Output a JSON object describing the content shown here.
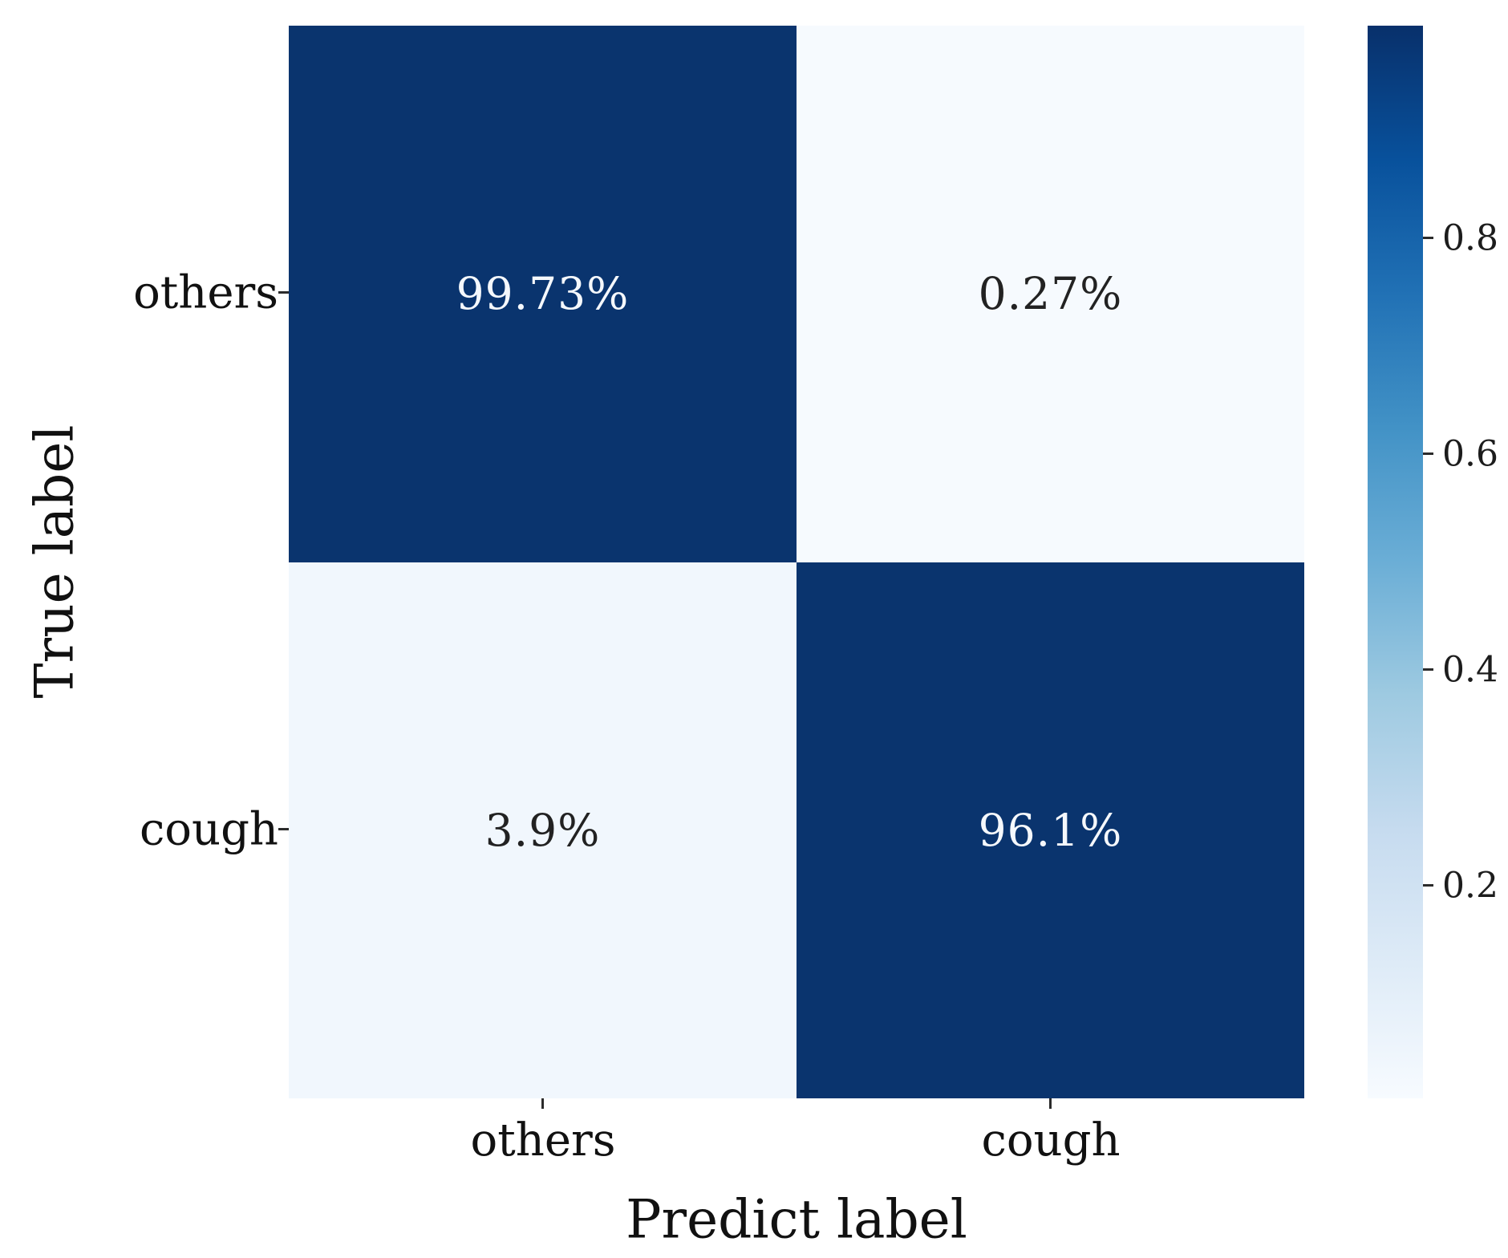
{
  "chart_data": {
    "type": "heatmap",
    "subtype": "confusion-matrix",
    "title": "",
    "xlabel": "Predict label",
    "ylabel": "True label",
    "x_categories": [
      "others",
      "cough"
    ],
    "y_categories": [
      "others",
      "cough"
    ],
    "values_percent": [
      [
        99.73,
        0.27
      ],
      [
        3.9,
        96.1
      ]
    ],
    "cell_labels": [
      [
        "99.73%",
        "0.27%"
      ],
      [
        "3.9%",
        "96.1%"
      ]
    ],
    "colormap": "Blues",
    "colorbar_range": [
      0.0027,
      0.9973
    ],
    "colorbar_tick_values": [
      0.2,
      0.4,
      0.6,
      0.8
    ],
    "grid": false,
    "legend": "colorbar-right"
  },
  "axes": {
    "xlabel": "Predict label",
    "ylabel": "True label",
    "xticks": {
      "others": "others",
      "cough": "cough"
    },
    "yticks": {
      "others": "others",
      "cough": "cough"
    }
  },
  "cells": {
    "r0c0": {
      "label": "99.73%",
      "bg": "#0a346e",
      "fg": "#f5f8fc"
    },
    "r0c1": {
      "label": "0.27%",
      "bg": "#f6fafe",
      "fg": "#222222"
    },
    "r1c0": {
      "label": "3.9%",
      "bg": "#f1f7fd",
      "fg": "#222222"
    },
    "r1c1": {
      "label": "96.1%",
      "bg": "#0a346e",
      "fg": "#f5f8fc"
    }
  },
  "colorbar": {
    "ticks": {
      "t08": "0.8",
      "t06": "0.6",
      "t04": "0.4",
      "t02": "0.2"
    },
    "gradient_bottom_to_top": [
      "#f7fbff",
      "#deebf7",
      "#c6dbef",
      "#9ecae1",
      "#6baed6",
      "#4292c6",
      "#2171b5",
      "#08519c",
      "#08306b"
    ]
  },
  "colors": {
    "dark_cell": "#0a346e",
    "light_cell_027": "#f6fafe",
    "light_cell_39": "#f1f7fd",
    "annotation_light": "#f5f8fc",
    "annotation_dark": "#222222",
    "axis_text": "#111111"
  }
}
